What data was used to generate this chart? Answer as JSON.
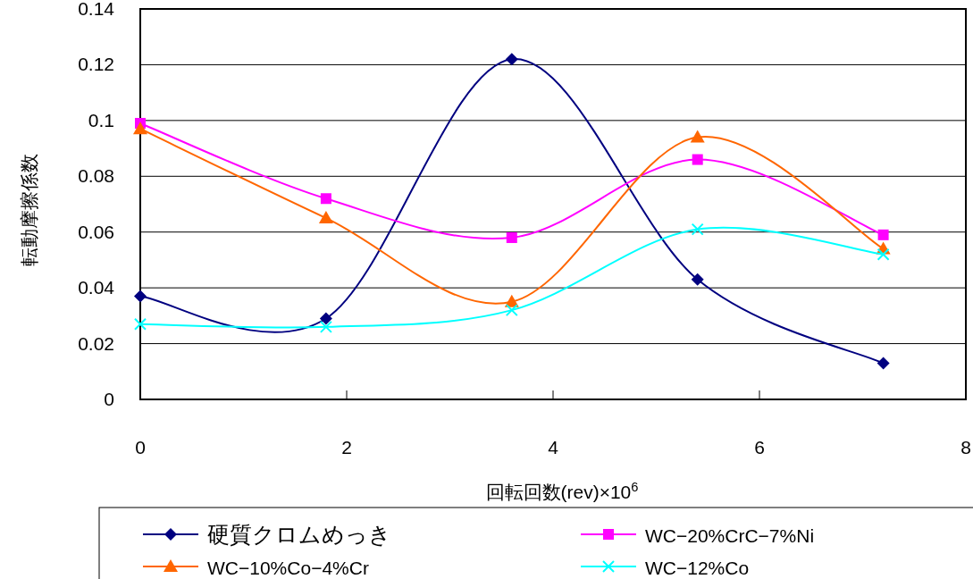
{
  "chart_data": {
    "type": "line",
    "xlabel": "回転回数(rev)×10$^{6}$",
    "ylabel": "転動摩擦係数",
    "x": [
      0,
      1.8,
      3.6,
      5.4,
      7.2
    ],
    "series": [
      {
        "name": "硬質クロムめっき",
        "color": "#000080",
        "marker": "diamond",
        "values": [
          0.037,
          0.029,
          0.122,
          0.043,
          0.013
        ]
      },
      {
        "name": "WC−20%CrC−7%Ni",
        "color": "#ff00ff",
        "marker": "square",
        "values": [
          0.099,
          0.072,
          0.058,
          0.086,
          0.059
        ]
      },
      {
        "name": "WC−10%Co−4%Cr",
        "color": "#ff6600",
        "marker": "triangle",
        "values": [
          0.097,
          0.065,
          0.035,
          0.094,
          0.054
        ]
      },
      {
        "name": "WC−12%Co",
        "color": "#00ffff",
        "marker": "cross",
        "values": [
          0.027,
          0.026,
          0.032,
          0.061,
          0.052
        ]
      }
    ],
    "xlim": [
      0,
      8
    ],
    "xticks": [
      0,
      2,
      4,
      6,
      8
    ],
    "ylim": [
      0,
      0.14
    ],
    "yticks": [
      0,
      0.02,
      0.04,
      0.06,
      0.08,
      0.1,
      0.12,
      0.14
    ],
    "grid": "y",
    "legend": "bottom"
  }
}
